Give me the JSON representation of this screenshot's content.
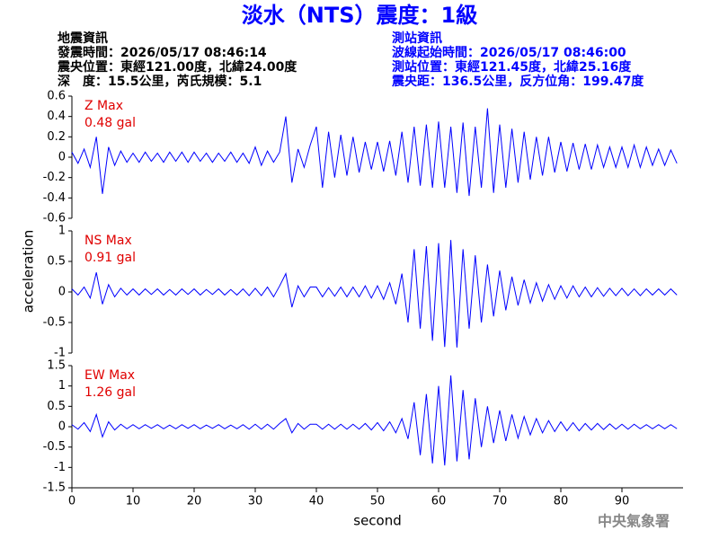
{
  "title": "淡水（NTS）震度：1級",
  "event_info": [
    "地震資訊",
    "發震時間：2026/05/17 08:46:14",
    "震央位置：東經121.00度，北緯24.00度",
    "深　度：15.5公里，芮氏規模：5.1"
  ],
  "station_info": [
    "測站資訊",
    "波線起始時間：2026/05/17 08:46:00",
    "測站位置：東經121.45度，北緯25.16度",
    "震央距：136.5公里，反方位角：199.47度"
  ],
  "ylabel": "acceleration",
  "footer": "中央氣象署",
  "chart_data": [
    {
      "type": "line",
      "annotation": [
        "Z Max",
        "0.48 gal"
      ],
      "color": "#0000ff",
      "ylim": [
        -0.6,
        0.6
      ],
      "yticks": [
        -0.6,
        -0.4,
        -0.2,
        0,
        0.2,
        0.4,
        0.6
      ],
      "xlim": [
        0,
        100
      ],
      "x": [
        0,
        1,
        2,
        3,
        4,
        5,
        6,
        7,
        8,
        9,
        10,
        11,
        12,
        13,
        14,
        15,
        16,
        17,
        18,
        19,
        20,
        21,
        22,
        23,
        24,
        25,
        26,
        27,
        28,
        29,
        30,
        31,
        32,
        33,
        34,
        35,
        36,
        37,
        38,
        39,
        40,
        41,
        42,
        43,
        44,
        45,
        46,
        47,
        48,
        49,
        50,
        51,
        52,
        53,
        54,
        55,
        56,
        57,
        58,
        59,
        60,
        61,
        62,
        63,
        64,
        65,
        66,
        67,
        68,
        69,
        70,
        71,
        72,
        73,
        74,
        75,
        76,
        77,
        78,
        79,
        80,
        81,
        82,
        83,
        84,
        85,
        86,
        87,
        88,
        89,
        90,
        91,
        92,
        93,
        94,
        95,
        96,
        97,
        98,
        99
      ],
      "values": [
        0.05,
        -0.06,
        0.08,
        -0.1,
        0.2,
        -0.36,
        0.1,
        -0.08,
        0.06,
        -0.05,
        0.04,
        -0.05,
        0.05,
        -0.04,
        0.04,
        -0.05,
        0.05,
        -0.04,
        0.05,
        -0.05,
        0.05,
        -0.04,
        0.04,
        -0.05,
        0.04,
        -0.04,
        0.05,
        -0.05,
        0.04,
        -0.06,
        0.1,
        -0.08,
        0.06,
        -0.05,
        0.05,
        0.4,
        -0.25,
        0.08,
        -0.1,
        0.12,
        0.3,
        -0.3,
        0.25,
        -0.2,
        0.22,
        -0.18,
        0.2,
        -0.15,
        0.15,
        -0.12,
        0.15,
        -0.14,
        0.16,
        -0.18,
        0.25,
        -0.25,
        0.3,
        -0.28,
        0.32,
        -0.3,
        0.35,
        -0.3,
        0.3,
        -0.35,
        0.34,
        -0.38,
        0.3,
        -0.3,
        0.48,
        -0.35,
        0.32,
        -0.3,
        0.28,
        -0.25,
        0.25,
        -0.22,
        0.2,
        -0.18,
        0.2,
        -0.15,
        0.15,
        -0.14,
        0.14,
        -0.12,
        0.13,
        -0.12,
        0.12,
        -0.1,
        0.1,
        -0.1,
        0.1,
        -0.1,
        0.12,
        -0.1,
        0.1,
        -0.08,
        0.08,
        -0.08,
        0.07,
        -0.06
      ]
    },
    {
      "type": "line",
      "annotation": [
        "NS Max",
        "0.91 gal"
      ],
      "color": "#0000ff",
      "ylim": [
        -1,
        1
      ],
      "yticks": [
        -1,
        -0.5,
        0,
        0.5,
        1
      ],
      "xlim": [
        0,
        100
      ],
      "x": [
        0,
        1,
        2,
        3,
        4,
        5,
        6,
        7,
        8,
        9,
        10,
        11,
        12,
        13,
        14,
        15,
        16,
        17,
        18,
        19,
        20,
        21,
        22,
        23,
        24,
        25,
        26,
        27,
        28,
        29,
        30,
        31,
        32,
        33,
        34,
        35,
        36,
        37,
        38,
        39,
        40,
        41,
        42,
        43,
        44,
        45,
        46,
        47,
        48,
        49,
        50,
        51,
        52,
        53,
        54,
        55,
        56,
        57,
        58,
        59,
        60,
        61,
        62,
        63,
        64,
        65,
        66,
        67,
        68,
        69,
        70,
        71,
        72,
        73,
        74,
        75,
        76,
        77,
        78,
        79,
        80,
        81,
        82,
        83,
        84,
        85,
        86,
        87,
        88,
        89,
        90,
        91,
        92,
        93,
        94,
        95,
        96,
        97,
        98,
        99
      ],
      "values": [
        0.05,
        -0.05,
        0.08,
        -0.1,
        0.32,
        -0.2,
        0.12,
        -0.08,
        0.06,
        -0.05,
        0.05,
        -0.05,
        0.05,
        -0.04,
        0.05,
        -0.05,
        0.04,
        -0.05,
        0.05,
        -0.04,
        0.05,
        -0.05,
        0.04,
        -0.04,
        0.05,
        -0.05,
        0.04,
        -0.05,
        0.05,
        -0.06,
        0.06,
        -0.06,
        0.08,
        -0.08,
        0.1,
        0.3,
        -0.25,
        0.1,
        -0.08,
        0.08,
        0.08,
        -0.08,
        0.07,
        -0.07,
        0.08,
        -0.08,
        0.08,
        -0.08,
        0.1,
        -0.1,
        0.1,
        -0.12,
        0.15,
        -0.2,
        0.3,
        -0.5,
        0.7,
        -0.6,
        0.75,
        -0.8,
        0.8,
        -0.9,
        0.85,
        -0.91,
        0.7,
        -0.6,
        0.6,
        -0.5,
        0.45,
        -0.4,
        0.35,
        -0.3,
        0.25,
        -0.22,
        0.2,
        -0.18,
        0.15,
        -0.15,
        0.12,
        -0.12,
        0.1,
        -0.1,
        0.1,
        -0.08,
        0.08,
        -0.08,
        0.07,
        -0.07,
        0.06,
        -0.06,
        0.06,
        -0.06,
        0.05,
        -0.06,
        0.05,
        -0.05,
        0.05,
        -0.05,
        0.05,
        -0.05
      ]
    },
    {
      "type": "line",
      "annotation": [
        "EW Max",
        "1.26 gal"
      ],
      "color": "#0000ff",
      "ylim": [
        -1.5,
        1.5
      ],
      "yticks": [
        -1.5,
        -1,
        -0.5,
        0,
        0.5,
        1,
        1.5
      ],
      "xlim": [
        0,
        100
      ],
      "xticks": [
        0,
        10,
        20,
        30,
        40,
        50,
        60,
        70,
        80,
        90
      ],
      "xlabel": "second",
      "x": [
        0,
        1,
        2,
        3,
        4,
        5,
        6,
        7,
        8,
        9,
        10,
        11,
        12,
        13,
        14,
        15,
        16,
        17,
        18,
        19,
        20,
        21,
        22,
        23,
        24,
        25,
        26,
        27,
        28,
        29,
        30,
        31,
        32,
        33,
        34,
        35,
        36,
        37,
        38,
        39,
        40,
        41,
        42,
        43,
        44,
        45,
        46,
        47,
        48,
        49,
        50,
        51,
        52,
        53,
        54,
        55,
        56,
        57,
        58,
        59,
        60,
        61,
        62,
        63,
        64,
        65,
        66,
        67,
        68,
        69,
        70,
        71,
        72,
        73,
        74,
        75,
        76,
        77,
        78,
        79,
        80,
        81,
        82,
        83,
        84,
        85,
        86,
        87,
        88,
        89,
        90,
        91,
        92,
        93,
        94,
        95,
        96,
        97,
        98,
        99
      ],
      "values": [
        0.05,
        -0.06,
        0.1,
        -0.12,
        0.3,
        -0.25,
        0.12,
        -0.08,
        0.06,
        -0.05,
        0.05,
        -0.05,
        0.05,
        -0.04,
        0.05,
        -0.05,
        0.04,
        -0.05,
        0.05,
        -0.04,
        0.05,
        -0.05,
        0.04,
        -0.04,
        0.05,
        -0.05,
        0.04,
        -0.05,
        0.05,
        -0.06,
        0.06,
        -0.06,
        0.06,
        -0.06,
        0.08,
        0.2,
        -0.15,
        0.08,
        -0.06,
        0.06,
        0.06,
        -0.06,
        0.06,
        -0.06,
        0.06,
        -0.06,
        0.06,
        -0.06,
        0.08,
        -0.08,
        0.1,
        -0.1,
        0.12,
        -0.15,
        0.2,
        -0.3,
        0.6,
        -0.7,
        0.8,
        -0.9,
        1.0,
        -0.95,
        1.26,
        -0.85,
        0.9,
        -0.8,
        0.7,
        -0.5,
        0.5,
        -0.4,
        0.4,
        -0.35,
        0.3,
        -0.28,
        0.25,
        -0.2,
        0.2,
        -0.15,
        0.15,
        -0.12,
        0.12,
        -0.1,
        0.1,
        -0.1,
        0.08,
        -0.08,
        0.08,
        -0.07,
        0.07,
        -0.06,
        0.06,
        -0.06,
        0.06,
        -0.05,
        0.05,
        -0.05,
        0.05,
        -0.05,
        0.05,
        -0.05
      ]
    }
  ]
}
